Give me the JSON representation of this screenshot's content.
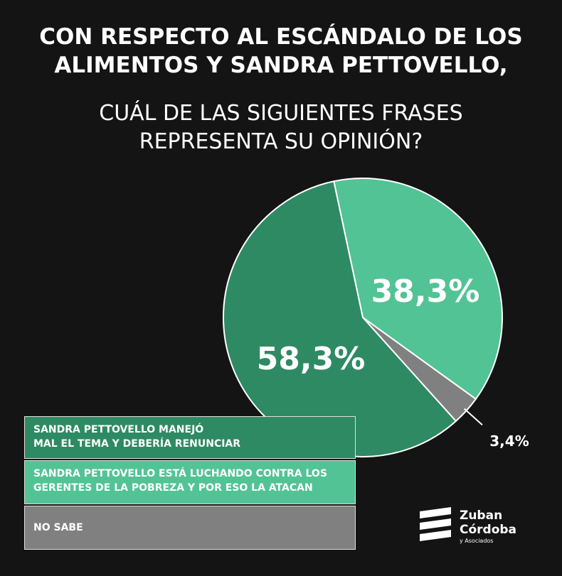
{
  "title": {
    "line1": "CON RESPECTO AL ESCÁNDALO DE LOS",
    "line2": "ALIMENTOS Y SANDRA PETTOVELLO,"
  },
  "subtitle": {
    "line1": "CUÁL DE LAS SIGUIENTES FRASES",
    "line2": "REPRESENTA SU OPINIÓN?"
  },
  "chart_data": {
    "type": "pie",
    "slices": [
      {
        "label": "SANDRA PETTOVELLO MANEJÓ MAL EL TEMA Y DEBERÍA RENUNCIAR",
        "value": 58.3,
        "value_label": "58,3%",
        "color": "#2e8a63"
      },
      {
        "label": "SANDRA PETTOVELLO ESTÁ LUCHANDO CONTRA LOS GERENTES DE LA POBREZA Y POR ESO LA ATACAN",
        "value": 38.3,
        "value_label": "38,3%",
        "color": "#52c394"
      },
      {
        "label": "NO SABE",
        "value": 3.4,
        "value_label": "3,4%",
        "color": "#808080"
      }
    ]
  },
  "legend": {
    "items": [
      {
        "line1": "SANDRA PETTOVELLO MANEJÓ",
        "line2": "MAL EL TEMA Y DEBERÍA RENUNCIAR",
        "color": "#2e8a63"
      },
      {
        "line1": "SANDRA PETTOVELLO ESTÁ LUCHANDO CONTRA LOS",
        "line2": "GERENTES DE LA POBREZA Y POR ESO LA ATACAN",
        "color": "#52c394"
      },
      {
        "line1": "NO SABE",
        "line2": "",
        "color": "#808080"
      }
    ]
  },
  "logo": {
    "line1": "Zuban",
    "line2": "Córdoba",
    "line3": "y Asociados",
    "icon": "zuban-cordoba-logo-icon"
  }
}
